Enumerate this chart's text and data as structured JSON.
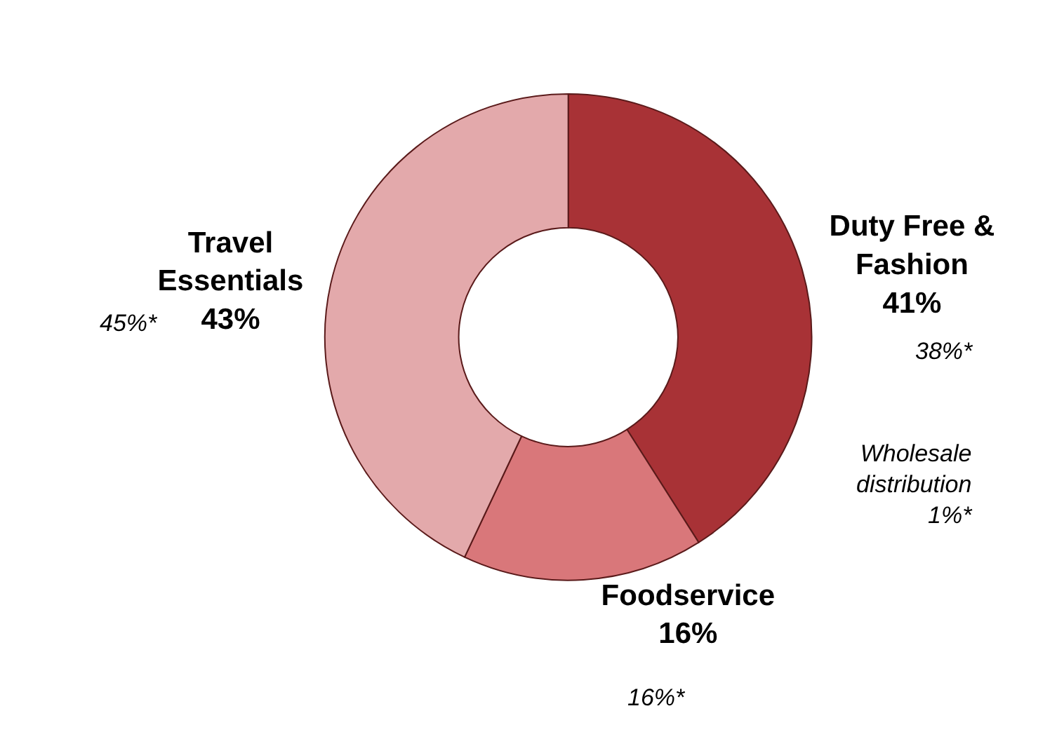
{
  "chart_data": {
    "type": "donut",
    "categories": [
      "Duty Free &\nFashion",
      "Foodservice",
      "Travel\nEssentials"
    ],
    "values": [
      41,
      16,
      43
    ],
    "colors": [
      "#a83236",
      "#d9777a",
      "#e3a9ab"
    ],
    "value_labels": [
      "41%",
      "16%",
      "43%"
    ],
    "legend": false,
    "annotations": [
      "38%*",
      "16%*",
      "45%*",
      "Wholesale\ndistribution\n1%*"
    ]
  }
}
